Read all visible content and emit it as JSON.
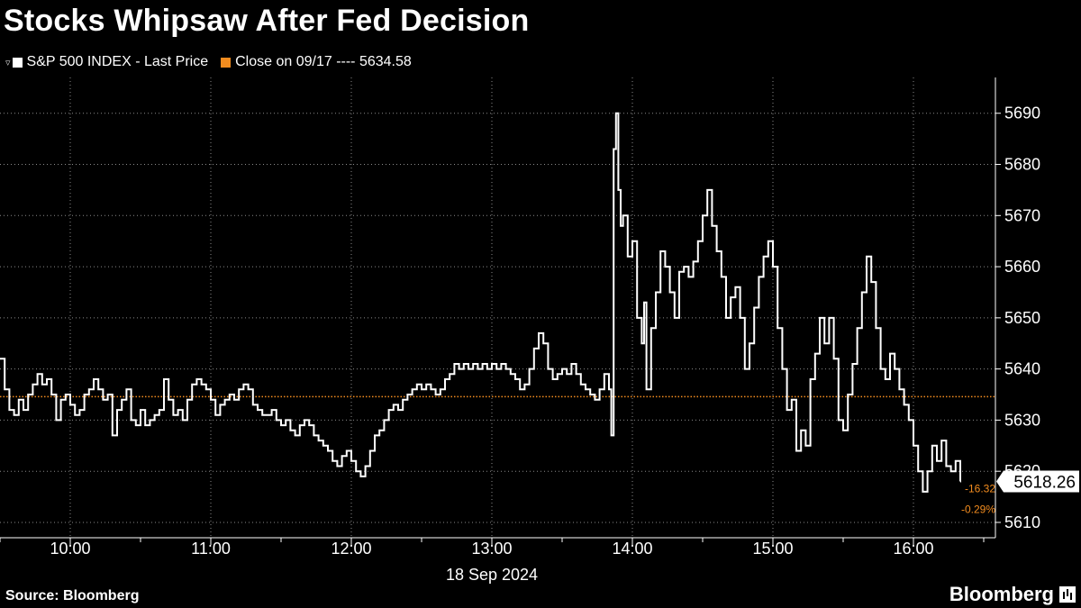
{
  "title": "Stocks Whipsaw After Fed Decision",
  "source": "Source: Bloomberg",
  "brand": "Bloomberg",
  "colors": {
    "price": "#ffffff",
    "reference": "#f28c1f",
    "grid": "#8a8a8a",
    "background": "#000000"
  },
  "legend": {
    "price_label": "S&P 500 INDEX - Last Price",
    "close_label": "Close on 09/17 ---- 5634.58"
  },
  "chart_data": {
    "type": "line",
    "title": "Stocks Whipsaw After Fed Decision",
    "xlabel": "18 Sep 2024",
    "ylabel": "",
    "x_ticks": [
      "10:00",
      "11:00",
      "12:00",
      "13:00",
      "14:00",
      "15:00",
      "16:00"
    ],
    "y_ticks": [
      5610,
      5620,
      5630,
      5640,
      5650,
      5660,
      5670,
      5680,
      5690
    ],
    "xlim": [
      "09:30",
      "16:35"
    ],
    "ylim": [
      5607,
      5697
    ],
    "grid": true,
    "legend_position": "top-left",
    "reference_line": {
      "name": "Close on 09/17",
      "value": 5634.58
    },
    "last_value": "5618.26",
    "change": {
      "points": "-16.32",
      "percent": "-0.29%"
    },
    "series": [
      {
        "name": "S&P 500 INDEX - Last Price",
        "points": [
          [
            "09:30",
            5642
          ],
          [
            "09:32",
            5636
          ],
          [
            "09:34",
            5632
          ],
          [
            "09:36",
            5631
          ],
          [
            "09:38",
            5634
          ],
          [
            "09:40",
            5632
          ],
          [
            "09:42",
            5635
          ],
          [
            "09:44",
            5637
          ],
          [
            "09:46",
            5639
          ],
          [
            "09:48",
            5637
          ],
          [
            "09:50",
            5638
          ],
          [
            "09:52",
            5635
          ],
          [
            "09:54",
            5630
          ],
          [
            "09:56",
            5634
          ],
          [
            "09:58",
            5635
          ],
          [
            "10:00",
            5633
          ],
          [
            "10:02",
            5631
          ],
          [
            "10:04",
            5632
          ],
          [
            "10:06",
            5635
          ],
          [
            "10:08",
            5636
          ],
          [
            "10:10",
            5638
          ],
          [
            "10:12",
            5636
          ],
          [
            "10:14",
            5634
          ],
          [
            "10:16",
            5635
          ],
          [
            "10:18",
            5627
          ],
          [
            "10:20",
            5632
          ],
          [
            "10:22",
            5634
          ],
          [
            "10:24",
            5636
          ],
          [
            "10:26",
            5630
          ],
          [
            "10:28",
            5629
          ],
          [
            "10:30",
            5632
          ],
          [
            "10:32",
            5629
          ],
          [
            "10:34",
            5630
          ],
          [
            "10:36",
            5631
          ],
          [
            "10:38",
            5632
          ],
          [
            "10:40",
            5638
          ],
          [
            "10:42",
            5634
          ],
          [
            "10:44",
            5631
          ],
          [
            "10:46",
            5632
          ],
          [
            "10:48",
            5630
          ],
          [
            "10:50",
            5634
          ],
          [
            "10:52",
            5637
          ],
          [
            "10:54",
            5638
          ],
          [
            "10:56",
            5637
          ],
          [
            "10:58",
            5636
          ],
          [
            "11:00",
            5634
          ],
          [
            "11:02",
            5631
          ],
          [
            "11:04",
            5633
          ],
          [
            "11:06",
            5634
          ],
          [
            "11:08",
            5635
          ],
          [
            "11:10",
            5634
          ],
          [
            "11:12",
            5636
          ],
          [
            "11:14",
            5637
          ],
          [
            "11:16",
            5636
          ],
          [
            "11:18",
            5633
          ],
          [
            "11:20",
            5632
          ],
          [
            "11:22",
            5631
          ],
          [
            "11:24",
            5631
          ],
          [
            "11:26",
            5632
          ],
          [
            "11:28",
            5630
          ],
          [
            "11:30",
            5629
          ],
          [
            "11:32",
            5630
          ],
          [
            "11:34",
            5628
          ],
          [
            "11:36",
            5627
          ],
          [
            "11:38",
            5629
          ],
          [
            "11:40",
            5630
          ],
          [
            "11:42",
            5629
          ],
          [
            "11:44",
            5627
          ],
          [
            "11:46",
            5626
          ],
          [
            "11:48",
            5625
          ],
          [
            "11:50",
            5624
          ],
          [
            "11:52",
            5622
          ],
          [
            "11:54",
            5621
          ],
          [
            "11:56",
            5623
          ],
          [
            "11:58",
            5624
          ],
          [
            "12:00",
            5622
          ],
          [
            "12:02",
            5620
          ],
          [
            "12:04",
            5619
          ],
          [
            "12:06",
            5621
          ],
          [
            "12:08",
            5624
          ],
          [
            "12:10",
            5627
          ],
          [
            "12:12",
            5628
          ],
          [
            "12:14",
            5630
          ],
          [
            "12:16",
            5632
          ],
          [
            "12:18",
            5633
          ],
          [
            "12:20",
            5632
          ],
          [
            "12:22",
            5634
          ],
          [
            "12:24",
            5635
          ],
          [
            "12:26",
            5636
          ],
          [
            "12:28",
            5637
          ],
          [
            "12:30",
            5636
          ],
          [
            "12:32",
            5637
          ],
          [
            "12:34",
            5636
          ],
          [
            "12:36",
            5635
          ],
          [
            "12:38",
            5636
          ],
          [
            "12:40",
            5638
          ],
          [
            "12:42",
            5639
          ],
          [
            "12:44",
            5641
          ],
          [
            "12:46",
            5640
          ],
          [
            "12:48",
            5641
          ],
          [
            "12:50",
            5640
          ],
          [
            "12:52",
            5641
          ],
          [
            "12:54",
            5640
          ],
          [
            "12:56",
            5641
          ],
          [
            "12:58",
            5640
          ],
          [
            "13:00",
            5641
          ],
          [
            "13:02",
            5640
          ],
          [
            "13:04",
            5641
          ],
          [
            "13:06",
            5640
          ],
          [
            "13:08",
            5639
          ],
          [
            "13:10",
            5638
          ],
          [
            "13:12",
            5636
          ],
          [
            "13:14",
            5637
          ],
          [
            "13:16",
            5640
          ],
          [
            "13:18",
            5644
          ],
          [
            "13:20",
            5647
          ],
          [
            "13:22",
            5645
          ],
          [
            "13:24",
            5640
          ],
          [
            "13:26",
            5638
          ],
          [
            "13:28",
            5639
          ],
          [
            "13:30",
            5640
          ],
          [
            "13:32",
            5639
          ],
          [
            "13:34",
            5641
          ],
          [
            "13:36",
            5639
          ],
          [
            "13:38",
            5637
          ],
          [
            "13:40",
            5636
          ],
          [
            "13:42",
            5635
          ],
          [
            "13:44",
            5634
          ],
          [
            "13:46",
            5636
          ],
          [
            "13:48",
            5639
          ],
          [
            "13:50",
            5636
          ],
          [
            "13:51",
            5627
          ],
          [
            "13:52",
            5683
          ],
          [
            "13:53",
            5690
          ],
          [
            "13:54",
            5675
          ],
          [
            "13:55",
            5668
          ],
          [
            "13:56",
            5670
          ],
          [
            "13:58",
            5662
          ],
          [
            "14:00",
            5665
          ],
          [
            "14:02",
            5650
          ],
          [
            "14:04",
            5645
          ],
          [
            "14:05",
            5653
          ],
          [
            "14:06",
            5636
          ],
          [
            "14:08",
            5648
          ],
          [
            "14:10",
            5655
          ],
          [
            "14:12",
            5663
          ],
          [
            "14:14",
            5660
          ],
          [
            "14:16",
            5655
          ],
          [
            "14:18",
            5650
          ],
          [
            "14:20",
            5659
          ],
          [
            "14:22",
            5660
          ],
          [
            "14:24",
            5658
          ],
          [
            "14:26",
            5661
          ],
          [
            "14:28",
            5665
          ],
          [
            "14:30",
            5670
          ],
          [
            "14:32",
            5675
          ],
          [
            "14:34",
            5668
          ],
          [
            "14:36",
            5663
          ],
          [
            "14:38",
            5658
          ],
          [
            "14:40",
            5650
          ],
          [
            "14:42",
            5654
          ],
          [
            "14:44",
            5656
          ],
          [
            "14:46",
            5650
          ],
          [
            "14:48",
            5640
          ],
          [
            "14:50",
            5645
          ],
          [
            "14:52",
            5652
          ],
          [
            "14:54",
            5658
          ],
          [
            "14:56",
            5662
          ],
          [
            "14:58",
            5665
          ],
          [
            "15:00",
            5660
          ],
          [
            "15:02",
            5648
          ],
          [
            "15:04",
            5640
          ],
          [
            "15:06",
            5632
          ],
          [
            "15:08",
            5634
          ],
          [
            "15:10",
            5624
          ],
          [
            "15:12",
            5628
          ],
          [
            "15:14",
            5625
          ],
          [
            "15:16",
            5638
          ],
          [
            "15:18",
            5643
          ],
          [
            "15:20",
            5650
          ],
          [
            "15:22",
            5645
          ],
          [
            "15:24",
            5650
          ],
          [
            "15:26",
            5642
          ],
          [
            "15:28",
            5630
          ],
          [
            "15:30",
            5628
          ],
          [
            "15:32",
            5635
          ],
          [
            "15:34",
            5641
          ],
          [
            "15:36",
            5648
          ],
          [
            "15:38",
            5655
          ],
          [
            "15:40",
            5662
          ],
          [
            "15:42",
            5657
          ],
          [
            "15:44",
            5648
          ],
          [
            "15:46",
            5640
          ],
          [
            "15:48",
            5638
          ],
          [
            "15:50",
            5643
          ],
          [
            "15:52",
            5640
          ],
          [
            "15:54",
            5636
          ],
          [
            "15:56",
            5633
          ],
          [
            "15:58",
            5630
          ],
          [
            "16:00",
            5625
          ],
          [
            "16:02",
            5620
          ],
          [
            "16:04",
            5616
          ],
          [
            "16:06",
            5620
          ],
          [
            "16:08",
            5625
          ],
          [
            "16:10",
            5622
          ],
          [
            "16:12",
            5626
          ],
          [
            "16:14",
            5621
          ],
          [
            "16:16",
            5620
          ],
          [
            "16:18",
            5622
          ],
          [
            "16:20",
            5618
          ]
        ]
      }
    ]
  }
}
